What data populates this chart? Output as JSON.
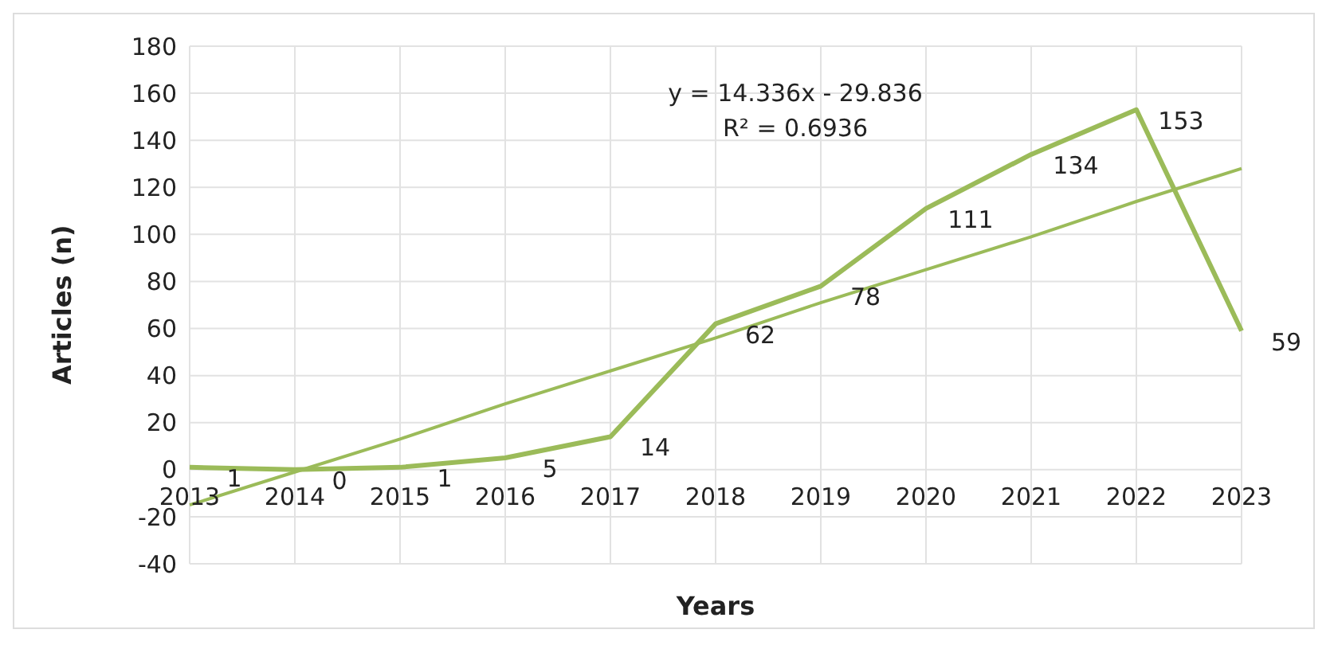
{
  "chart_data": {
    "type": "line",
    "xlabel": "Years",
    "ylabel": "Articles (n)",
    "categories": [
      "2013",
      "2014",
      "2015",
      "2016",
      "2017",
      "2018",
      "2019",
      "2020",
      "2021",
      "2022",
      "2023"
    ],
    "series": [
      {
        "color": "#9bbb59",
        "values": [
          1,
          0,
          1,
          5,
          14,
          62,
          78,
          111,
          134,
          153,
          59
        ],
        "value_labels": [
          "1",
          "0",
          "1",
          "5",
          "14",
          "62",
          "78",
          "111",
          "134",
          "153",
          "59"
        ]
      },
      {
        "type": "line",
        "color": "#9bbb59",
        "values": [
          -15,
          -1,
          13,
          28,
          42,
          56,
          71,
          85,
          99,
          114,
          128
        ]
      }
    ],
    "annotations": [
      "y = 14.336x - 29.836",
      "R² = 0.6936"
    ],
    "ylim": [
      -40,
      180
    ],
    "yticks": [
      -40,
      -20,
      0,
      20,
      40,
      60,
      80,
      100,
      120,
      140,
      160,
      180
    ],
    "grid": true,
    "marker": "none",
    "line_style": "solid"
  }
}
